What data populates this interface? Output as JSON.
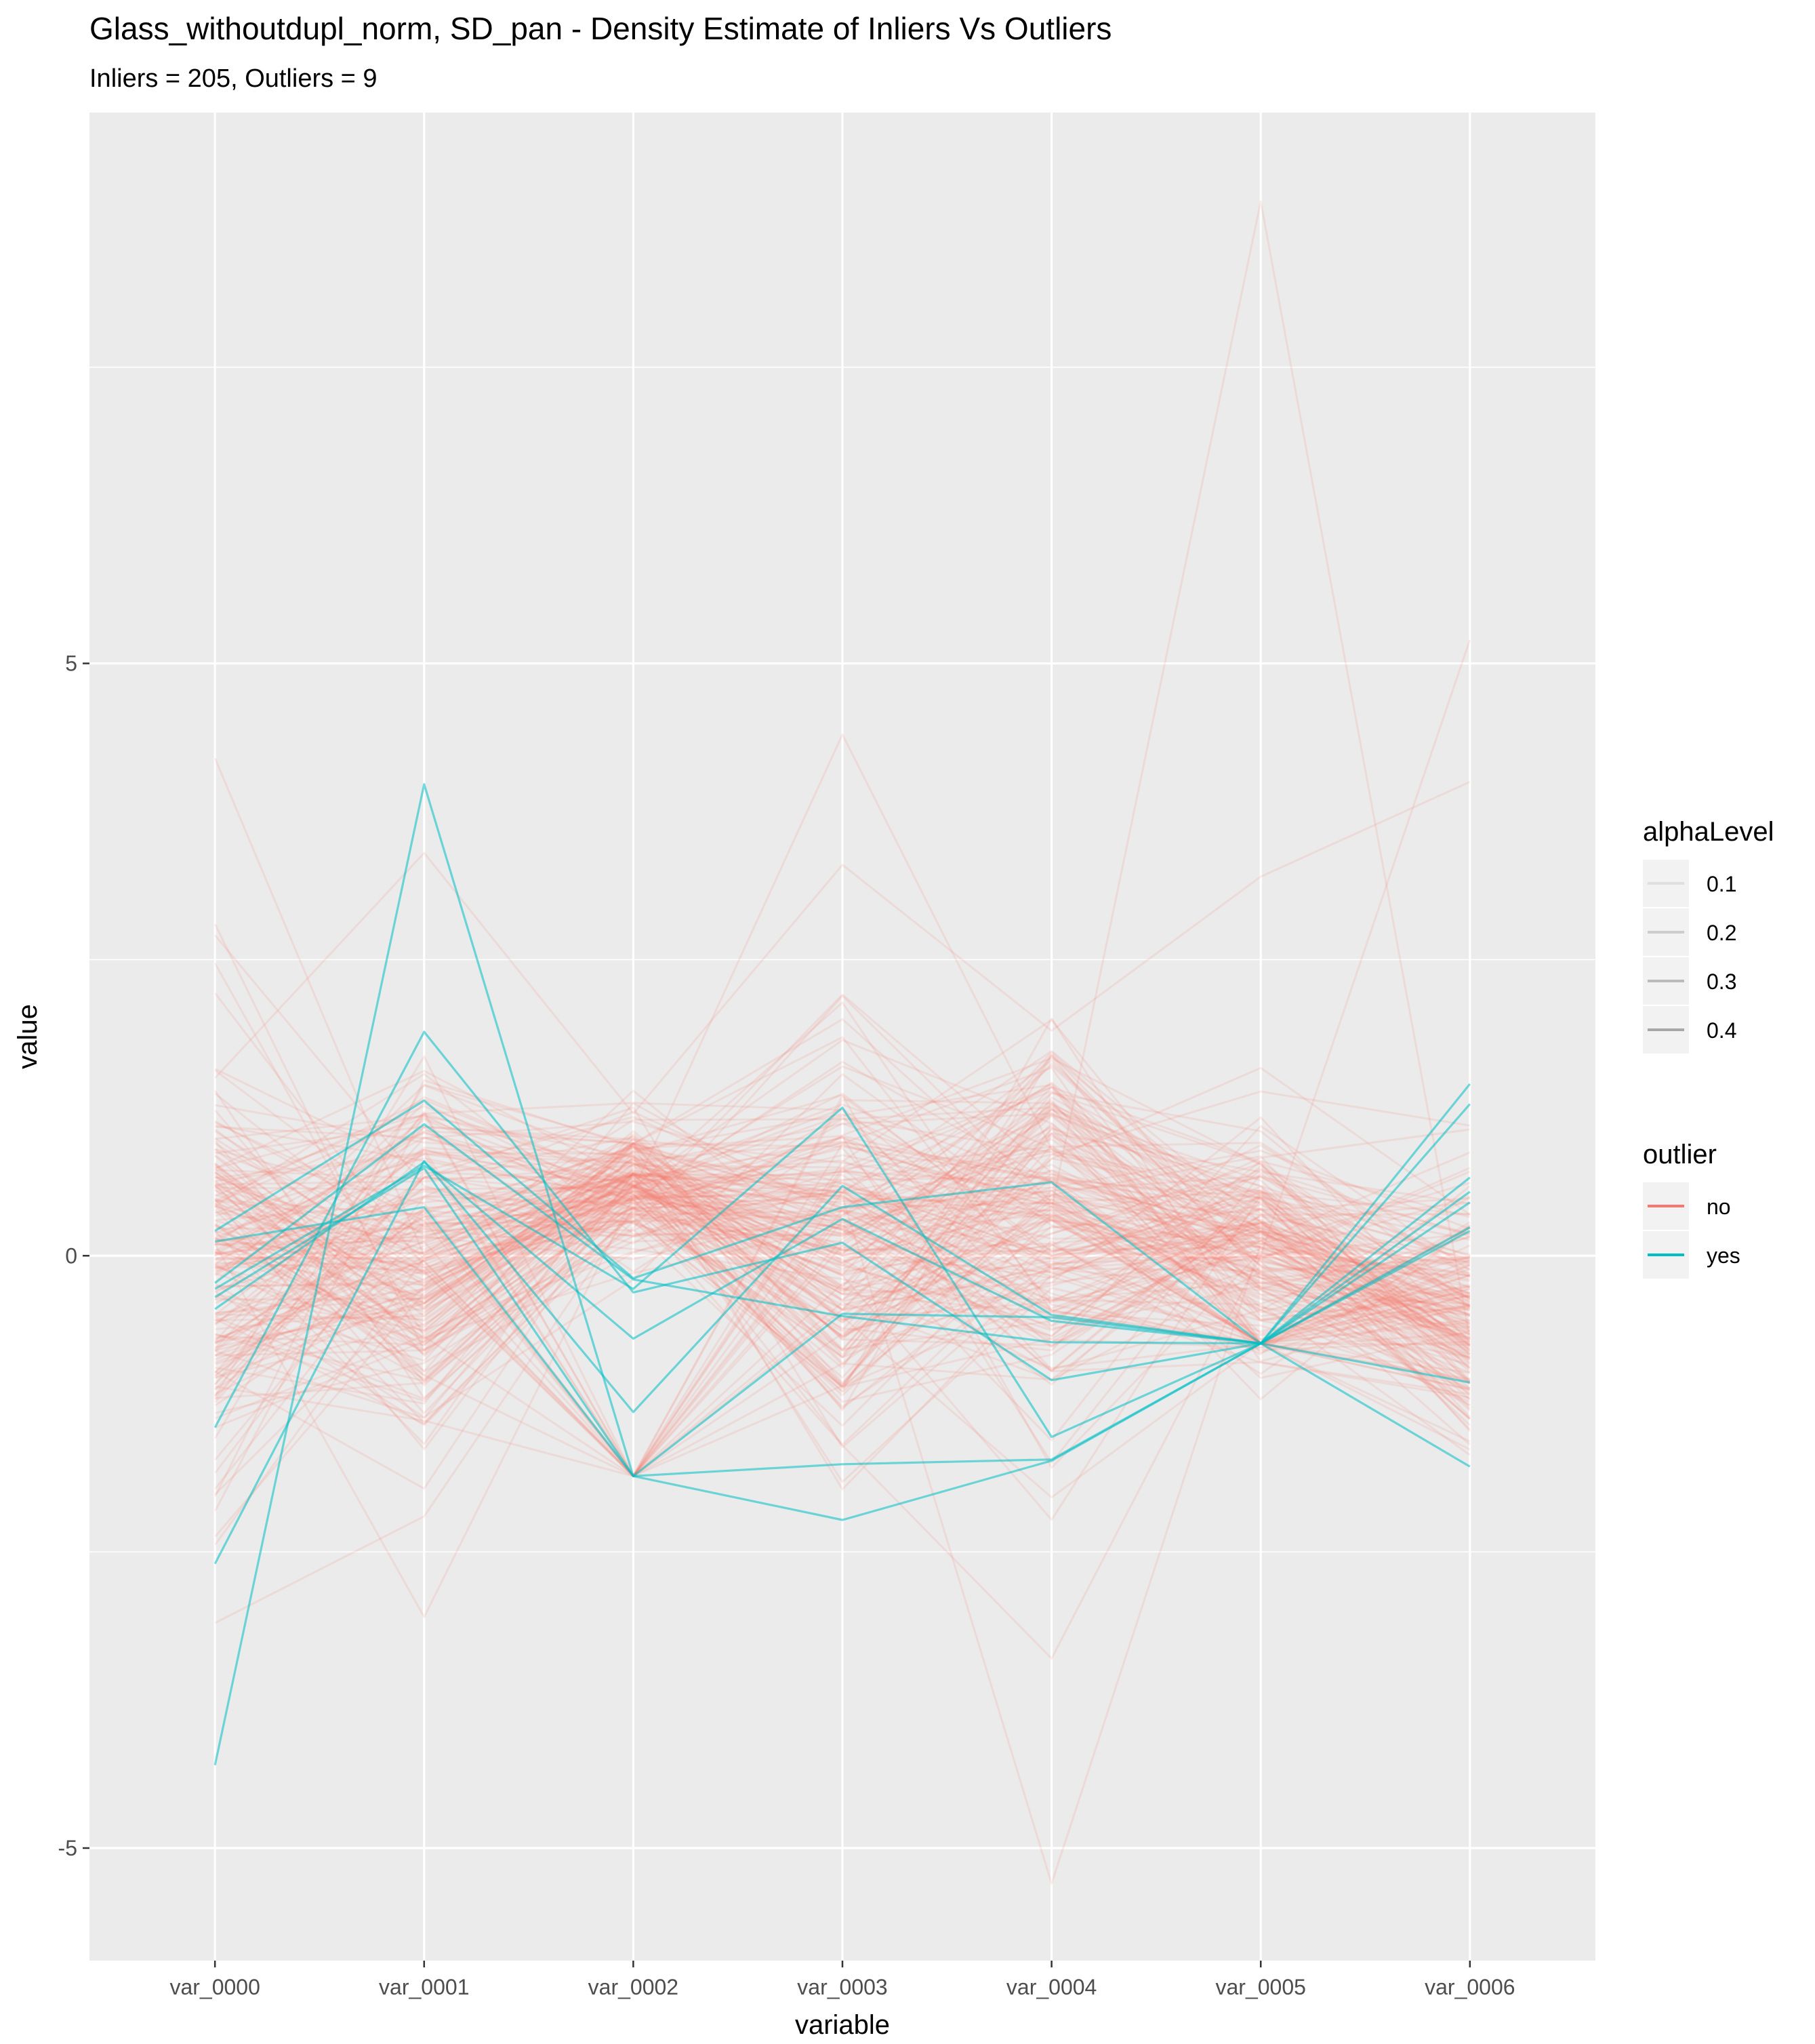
{
  "chart_data": {
    "type": "line",
    "subtype": "parallel-coordinates",
    "title": "Glass_withoutdupl_norm, SD_pan - Density Estimate of Inliers Vs Outliers",
    "subtitle": "Inliers = 205, Outliers = 9",
    "xlabel": "variable",
    "ylabel": "value",
    "categories": [
      "var_0000",
      "var_0001",
      "var_0002",
      "var_0003",
      "var_0004",
      "var_0005",
      "var_0006"
    ],
    "ylim": [
      -5.95,
      9.65
    ],
    "y_ticks": [
      -5,
      0,
      5
    ],
    "y_tick_labels": [
      "-5",
      "0",
      "5"
    ],
    "grid": true,
    "background": "#ebebeb",
    "legend_position": "right",
    "colors": {
      "no": "#f8766d",
      "yes": "#00bfc4",
      "alpha_swatch": "#7f7f7f"
    },
    "legends": [
      {
        "title": "alphaLevel",
        "kind": "alpha",
        "entries": [
          "0.1",
          "0.2",
          "0.3",
          "0.4"
        ],
        "alphas": [
          0.1,
          0.2,
          0.3,
          0.4
        ]
      },
      {
        "title": "outlier",
        "kind": "color",
        "entries": [
          "no",
          "yes"
        ]
      }
    ],
    "inlier_count": 205,
    "outlier_count": 9,
    "inlier_alpha": 0.1,
    "outlier_alpha": 0.4,
    "outlier_series": [
      {
        "group": "yes",
        "values": [
          -4.3,
          3.98,
          -1.86,
          -2.23,
          -1.73,
          -0.74,
          1.28
        ]
      },
      {
        "group": "yes",
        "values": [
          -2.6,
          0.8,
          -1.32,
          0.59,
          -0.5,
          -0.74,
          -1.07
        ]
      },
      {
        "group": "yes",
        "values": [
          -1.45,
          1.89,
          -0.31,
          0.11,
          -1.05,
          -0.74,
          0.66
        ]
      },
      {
        "group": "yes",
        "values": [
          0.21,
          1.31,
          -0.19,
          0.41,
          0.62,
          -0.74,
          0.45
        ]
      },
      {
        "group": "yes",
        "values": [
          -0.45,
          0.79,
          -0.7,
          0.31,
          -0.55,
          -0.74,
          1.45
        ]
      },
      {
        "group": "yes",
        "values": [
          0.12,
          0.41,
          -1.86,
          -1.76,
          -1.72,
          -0.74,
          0.24
        ]
      },
      {
        "group": "yes",
        "values": [
          -0.23,
          1.11,
          -0.2,
          -0.51,
          -0.73,
          -0.74,
          0.21
        ]
      },
      {
        "group": "yes",
        "values": [
          -0.28,
          0.76,
          -0.28,
          1.25,
          -1.53,
          -0.74,
          -1.78
        ]
      },
      {
        "group": "yes",
        "values": [
          -0.35,
          0.74,
          -1.86,
          -0.49,
          -0.52,
          -0.74,
          0.54
        ]
      }
    ],
    "inlier_series_sample": [
      [
        0.3,
        0.45,
        0.63,
        0.04,
        0.48,
        0.19,
        -0.42
      ],
      [
        -0.55,
        0.12,
        0.56,
        -0.15,
        0.3,
        0.07,
        -0.61
      ],
      [
        1.1,
        0.8,
        0.49,
        0.23,
        0.72,
        0.25,
        -0.55
      ],
      [
        -0.8,
        -0.35,
        0.58,
        -0.42,
        0.06,
        -0.05,
        -0.38
      ],
      [
        4.2,
        0.0,
        0.48,
        1.0,
        0.3,
        0.1,
        -0.5
      ],
      [
        2.8,
        -0.8,
        0.55,
        4.4,
        0.9,
        0.2,
        -0.6
      ],
      [
        0.0,
        0.5,
        0.6,
        0.0,
        0.4,
        8.9,
        -0.7
      ],
      [
        -3.1,
        -2.2,
        0.4,
        -1.6,
        -3.4,
        0.0,
        5.2
      ],
      [
        0.1,
        -3.05,
        0.5,
        0.5,
        -5.3,
        0.1,
        -0.2
      ],
      [
        1.5,
        3.4,
        1.2,
        3.3,
        1.9,
        3.2,
        4.0
      ]
    ]
  }
}
